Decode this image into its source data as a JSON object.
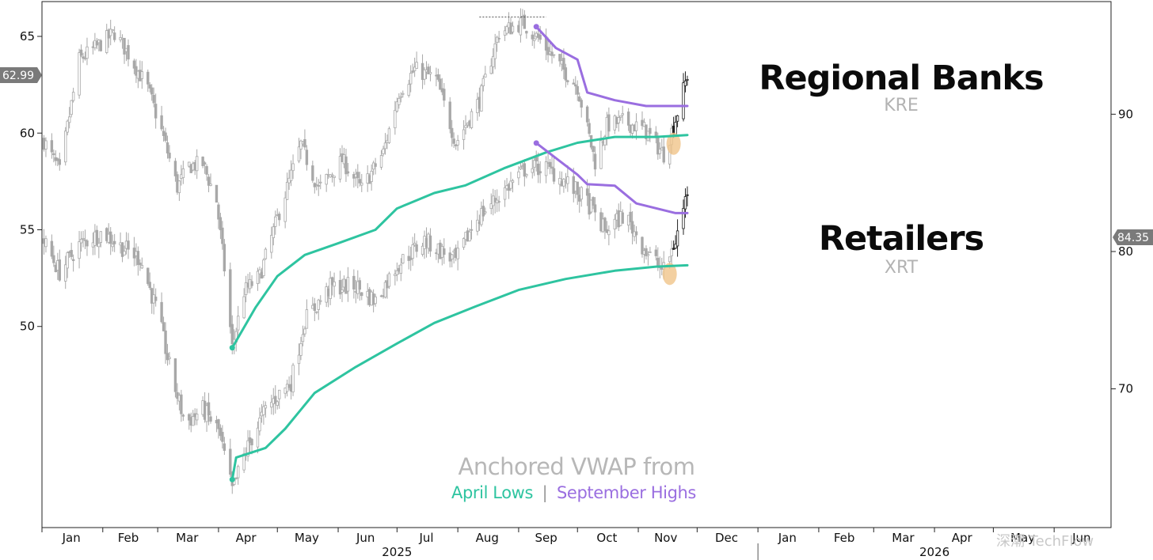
{
  "chart_data": {
    "type": "line",
    "subtype": "candlestick-with-anchored-vwap",
    "panels": [
      {
        "name": "Regional Banks",
        "ticker": "KRE",
        "axis": "left",
        "last_price": "62.99",
        "close_points": [
          [
            "2025-01-02",
            59.6
          ],
          [
            "2025-01-10",
            58.0
          ],
          [
            "2025-01-20",
            63.8
          ],
          [
            "2025-02-01",
            64.7
          ],
          [
            "2025-02-07",
            65.2
          ],
          [
            "2025-02-14",
            64.1
          ],
          [
            "2025-02-24",
            62.3
          ],
          [
            "2025-03-03",
            60.1
          ],
          [
            "2025-03-11",
            57.2
          ],
          [
            "2025-03-17",
            58.3
          ],
          [
            "2025-03-24",
            58.4
          ],
          [
            "2025-03-31",
            56.5
          ],
          [
            "2025-04-04",
            53.0
          ],
          [
            "2025-04-08",
            48.9
          ],
          [
            "2025-04-14",
            51.8
          ],
          [
            "2025-04-22",
            52.6
          ],
          [
            "2025-05-01",
            55.6
          ],
          [
            "2025-05-13",
            59.4
          ],
          [
            "2025-05-22",
            57.1
          ],
          [
            "2025-06-03",
            58.6
          ],
          [
            "2025-06-13",
            57.1
          ],
          [
            "2025-06-24",
            59.0
          ],
          [
            "2025-07-02",
            62.1
          ],
          [
            "2025-07-10",
            63.3
          ],
          [
            "2025-07-21",
            62.8
          ],
          [
            "2025-07-31",
            59.5
          ],
          [
            "2025-08-12",
            61.7
          ],
          [
            "2025-08-22",
            65.2
          ],
          [
            "2025-09-03",
            65.7
          ],
          [
            "2025-09-12",
            64.8
          ],
          [
            "2025-09-22",
            63.5
          ],
          [
            "2025-10-01",
            62.4
          ],
          [
            "2025-10-10",
            58.5
          ],
          [
            "2025-10-16",
            60.4
          ],
          [
            "2025-10-24",
            60.6
          ],
          [
            "2025-11-04",
            60.2
          ],
          [
            "2025-11-14",
            58.9
          ],
          [
            "2025-11-20",
            60.7
          ],
          [
            "2025-11-26",
            62.99
          ]
        ],
        "vwap_april_lows": [
          [
            "2025-04-08",
            48.9
          ],
          [
            "2025-04-20",
            51.0
          ],
          [
            "2025-05-01",
            52.6
          ],
          [
            "2025-05-15",
            53.7
          ],
          [
            "2025-06-01",
            54.3
          ],
          [
            "2025-06-20",
            55.0
          ],
          [
            "2025-07-01",
            56.1
          ],
          [
            "2025-07-20",
            56.9
          ],
          [
            "2025-08-05",
            57.3
          ],
          [
            "2025-08-25",
            58.2
          ],
          [
            "2025-09-15",
            59.0
          ],
          [
            "2025-10-01",
            59.5
          ],
          [
            "2025-10-20",
            59.8
          ],
          [
            "2025-11-10",
            59.8
          ],
          [
            "2025-11-26",
            59.9
          ]
        ],
        "vwap_september_highs": [
          [
            "2025-09-10",
            65.5
          ],
          [
            "2025-09-20",
            64.4
          ],
          [
            "2025-10-01",
            63.8
          ],
          [
            "2025-10-06",
            62.1
          ],
          [
            "2025-10-20",
            61.7
          ],
          [
            "2025-11-05",
            61.4
          ],
          [
            "2025-11-26",
            61.4
          ]
        ],
        "highlight_date": "2025-11-19"
      },
      {
        "name": "Retailers",
        "ticker": "XRT",
        "axis": "right",
        "last_price": "84.35",
        "close_points": [
          [
            "2025-01-02",
            80.7
          ],
          [
            "2025-01-10",
            78.5
          ],
          [
            "2025-01-20",
            80.5
          ],
          [
            "2025-02-01",
            81.4
          ],
          [
            "2025-02-10",
            80.4
          ],
          [
            "2025-02-20",
            79.5
          ],
          [
            "2025-03-01",
            75.5
          ],
          [
            "2025-03-08",
            71.0
          ],
          [
            "2025-03-15",
            67.5
          ],
          [
            "2025-03-24",
            68.5
          ],
          [
            "2025-04-01",
            67.0
          ],
          [
            "2025-04-08",
            62.6
          ],
          [
            "2025-04-15",
            65.5
          ],
          [
            "2025-04-25",
            68.5
          ],
          [
            "2025-05-01",
            69.5
          ],
          [
            "2025-05-08",
            70.5
          ],
          [
            "2025-05-15",
            75.0
          ],
          [
            "2025-05-28",
            77.4
          ],
          [
            "2025-06-10",
            77.5
          ],
          [
            "2025-06-20",
            76.4
          ],
          [
            "2025-07-01",
            79.0
          ],
          [
            "2025-07-15",
            80.8
          ],
          [
            "2025-07-31",
            79.3
          ],
          [
            "2025-08-10",
            82.3
          ],
          [
            "2025-08-25",
            84.5
          ],
          [
            "2025-09-05",
            86.1
          ],
          [
            "2025-09-15",
            86.1
          ],
          [
            "2025-09-25",
            85.1
          ],
          [
            "2025-10-06",
            83.6
          ],
          [
            "2025-10-15",
            81.5
          ],
          [
            "2025-10-25",
            82.7
          ],
          [
            "2025-11-05",
            80.0
          ],
          [
            "2025-11-14",
            78.6
          ],
          [
            "2025-11-20",
            80.8
          ],
          [
            "2025-11-26",
            84.35
          ]
        ],
        "vwap_april_lows": [
          [
            "2025-04-08",
            63.4
          ],
          [
            "2025-04-10",
            65.0
          ],
          [
            "2025-04-25",
            65.7
          ],
          [
            "2025-05-05",
            67.1
          ],
          [
            "2025-05-20",
            69.7
          ],
          [
            "2025-06-10",
            71.6
          ],
          [
            "2025-07-01",
            73.3
          ],
          [
            "2025-07-20",
            74.8
          ],
          [
            "2025-08-10",
            76.0
          ],
          [
            "2025-09-01",
            77.2
          ],
          [
            "2025-09-25",
            78.0
          ],
          [
            "2025-10-20",
            78.6
          ],
          [
            "2025-11-10",
            78.9
          ],
          [
            "2025-11-26",
            79.0
          ]
        ],
        "vwap_september_highs": [
          [
            "2025-09-10",
            87.9
          ],
          [
            "2025-09-20",
            86.8
          ],
          [
            "2025-10-01",
            85.6
          ],
          [
            "2025-10-06",
            84.9
          ],
          [
            "2025-10-20",
            84.8
          ],
          [
            "2025-10-31",
            83.5
          ],
          [
            "2025-11-20",
            82.8
          ],
          [
            "2025-11-26",
            82.8
          ]
        ],
        "highlight_date": "2025-11-17"
      }
    ],
    "left_axis": {
      "ylim": [
        39.6,
        66.8
      ],
      "ticks": [
        "65",
        "60",
        "55",
        "50"
      ]
    },
    "right_axis": {
      "ylim": [
        59.9,
        98.2
      ],
      "ticks": [
        "90",
        "80",
        "70"
      ]
    },
    "x_axis": {
      "range": [
        "2025-01-01",
        "2026-06-30"
      ],
      "month_labels": [
        {
          "label": "Jan",
          "date": "2025-01-16"
        },
        {
          "label": "Feb",
          "date": "2025-02-14"
        },
        {
          "label": "Mar",
          "date": "2025-03-16"
        },
        {
          "label": "Apr",
          "date": "2025-04-15"
        },
        {
          "label": "May",
          "date": "2025-05-16"
        },
        {
          "label": "Jun",
          "date": "2025-06-15"
        },
        {
          "label": "Jul",
          "date": "2025-07-16"
        },
        {
          "label": "Aug",
          "date": "2025-08-16"
        },
        {
          "label": "Sep",
          "date": "2025-09-15"
        },
        {
          "label": "Oct",
          "date": "2025-10-16"
        },
        {
          "label": "Nov",
          "date": "2025-11-15"
        },
        {
          "label": "Dec",
          "date": "2025-12-16"
        },
        {
          "label": "Jan",
          "date": "2026-01-16"
        },
        {
          "label": "Feb",
          "date": "2026-02-14"
        },
        {
          "label": "Mar",
          "date": "2026-03-16"
        },
        {
          "label": "Apr",
          "date": "2026-04-15"
        },
        {
          "label": "May",
          "date": "2026-05-16"
        },
        {
          "label": "Jun",
          "date": "2026-06-15"
        }
      ],
      "year_labels": [
        {
          "label": "2025",
          "date": "2025-07-01"
        },
        {
          "label": "2026",
          "date": "2026-04-01"
        }
      ],
      "year_separator": "2026-01-01"
    },
    "grid": false,
    "caption": "Anchored VWAP from",
    "legend": [
      {
        "label": "April Lows",
        "color": "#2ec4a0"
      },
      {
        "label": "September Highs",
        "color": "#9a6ee0"
      }
    ],
    "separator_glyph": "|",
    "watermark": "深潮 TechFlow"
  },
  "colors": {
    "vwap_april": "#2ec4a0",
    "vwap_september": "#9a6ee0",
    "candle": "#a8a8a8",
    "recent_candle": "#222222",
    "highlight": "#f0c48a",
    "badge": "#7a7a7a"
  }
}
